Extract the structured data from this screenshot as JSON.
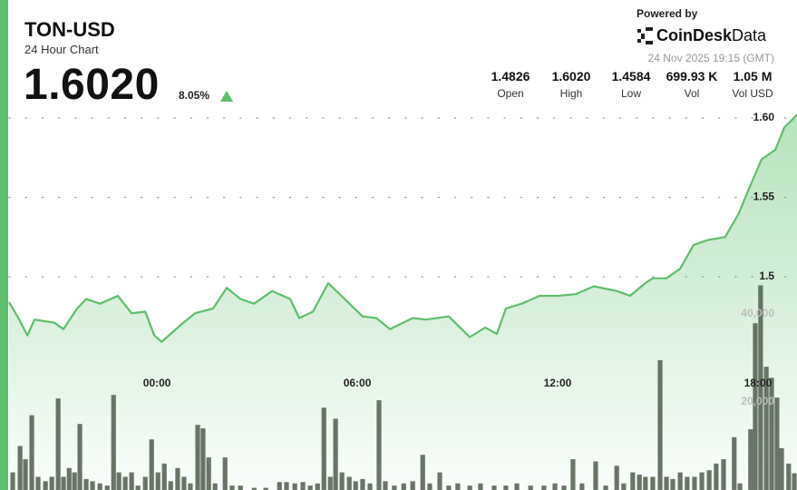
{
  "header": {
    "symbol": "TON-USD",
    "subtitle": "24 Hour Chart",
    "price": "1.6020",
    "change": "8.05%",
    "powered_by": "Powered by",
    "brand": "CoinDesk",
    "brand_suffix": "Data",
    "timestamp": "24 Nov 2025 19:15 (GMT)",
    "stats": [
      {
        "value": "1.4826",
        "label": "Open"
      },
      {
        "value": "1.6020",
        "label": "High"
      },
      {
        "value": "1.4584",
        "label": "Low"
      },
      {
        "value": "699.93 K",
        "label": "Vol"
      },
      {
        "value": "1.05 M",
        "label": "Vol USD"
      }
    ]
  },
  "chart_data": {
    "type": "line",
    "xlim": [
      -4.43,
      19.17
    ],
    "xticks": [
      {
        "value": 0,
        "label": "00:00"
      },
      {
        "value": 6,
        "label": "06:00"
      },
      {
        "value": 12,
        "label": "12:00"
      },
      {
        "value": 18,
        "label": "18:00"
      }
    ],
    "ylim": [
      1.3657,
      1.6057
    ],
    "yticks": [
      1.5,
      1.55,
      {
        "value": 1.6,
        "label": "1.60"
      }
    ],
    "y2lim": [
      0,
      86600
    ],
    "y2ticks": [
      {
        "value": 20000,
        "label": "20,000"
      },
      {
        "value": 40000,
        "label": "40,000"
      }
    ],
    "grid": true,
    "series": [
      {
        "color": "#5cbf6a",
        "x": [
          -4.43,
          -4.15,
          -3.88,
          -3.67,
          -3.07,
          -2.8,
          -2.39,
          -2.12,
          -1.71,
          -1.17,
          -0.76,
          -0.35,
          -0.08,
          0.14,
          0.73,
          1.14,
          1.68,
          2.09,
          2.5,
          2.91,
          3.45,
          3.99,
          4.26,
          4.67,
          5.13,
          5.62,
          6.16,
          6.57,
          6.98,
          7.66,
          8.06,
          8.74,
          9.37,
          9.83,
          10.18,
          10.45,
          10.92,
          11.46,
          12.0,
          12.54,
          13.08,
          13.77,
          14.17,
          14.63,
          14.85,
          15.26,
          15.67,
          16.07,
          16.48,
          17.02,
          17.43,
          17.7,
          18.11,
          18.52,
          18.79,
          19.17
        ],
        "values": [
          1.484,
          1.474,
          1.463,
          1.473,
          1.471,
          1.467,
          1.48,
          1.486,
          1.483,
          1.488,
          1.477,
          1.478,
          1.463,
          1.459,
          1.47,
          1.477,
          1.48,
          1.493,
          1.486,
          1.483,
          1.491,
          1.486,
          1.474,
          1.478,
          1.496,
          1.486,
          1.475,
          1.474,
          1.467,
          1.474,
          1.473,
          1.475,
          1.462,
          1.468,
          1.464,
          1.48,
          1.483,
          1.488,
          1.488,
          1.489,
          1.494,
          1.491,
          1.488,
          1.496,
          1.499,
          1.499,
          1.505,
          1.52,
          1.523,
          1.525,
          1.54,
          1.554,
          1.574,
          1.58,
          1.594,
          1.602
        ]
      },
      {
        "type": "bar",
        "axis": "y2",
        "color": "#4f5d4c",
        "x": [
          -4.32,
          -4.1,
          -3.94,
          -3.75,
          -3.56,
          -3.34,
          -3.15,
          -2.96,
          -2.8,
          -2.63,
          -2.47,
          -2.31,
          -2.12,
          -1.93,
          -1.71,
          -1.49,
          -1.3,
          -1.14,
          -0.95,
          -0.76,
          -0.57,
          -0.35,
          -0.16,
          0.03,
          0.22,
          0.41,
          0.62,
          0.81,
          1.0,
          1.22,
          1.38,
          1.55,
          1.74,
          2.04,
          2.25,
          2.5,
          2.91,
          3.26,
          3.67,
          3.88,
          4.13,
          4.37,
          4.59,
          4.81,
          5.0,
          5.19,
          5.35,
          5.54,
          5.76,
          5.95,
          6.16,
          6.38,
          6.65,
          6.84,
          7.11,
          7.39,
          7.66,
          7.96,
          8.17,
          8.47,
          8.74,
          9.01,
          9.37,
          9.69,
          10.1,
          10.45,
          10.78,
          11.19,
          11.59,
          11.92,
          12.19,
          12.46,
          12.73,
          13.14,
          13.44,
          13.77,
          13.98,
          14.25,
          14.45,
          14.63,
          14.85,
          15.07,
          15.26,
          15.45,
          15.67,
          15.88,
          16.1,
          16.32,
          16.54,
          16.75,
          16.97,
          17.29,
          17.46,
          17.78,
          17.92,
          18.08,
          18.25,
          18.41,
          18.57,
          18.71,
          18.92,
          19.09
        ],
        "values": [
          4000,
          10000,
          7000,
          17000,
          3000,
          2000,
          3000,
          20800,
          3000,
          5000,
          4000,
          15000,
          2500,
          2000,
          1500,
          1000,
          21600,
          4000,
          3000,
          4000,
          1000,
          3000,
          11500,
          4000,
          6000,
          2000,
          5000,
          3000,
          1500,
          14800,
          14000,
          7400,
          1500,
          7400,
          1000,
          1000,
          500,
          500,
          1800,
          1800,
          1500,
          1800,
          1000,
          1500,
          18700,
          3000,
          16200,
          4000,
          3000,
          2000,
          2500,
          1500,
          20400,
          2000,
          1000,
          1500,
          2000,
          8000,
          1500,
          4000,
          1000,
          1500,
          1000,
          1500,
          1000,
          1000,
          1500,
          1000,
          1000,
          1500,
          1000,
          7000,
          1500,
          6500,
          1000,
          5500,
          1500,
          4000,
          3500,
          3000,
          3000,
          29500,
          3000,
          2500,
          4000,
          3000,
          3000,
          4000,
          4500,
          6000,
          7000,
          12000,
          1500,
          13800,
          37900,
          46500,
          28000,
          25500,
          21000,
          9500,
          6000,
          3800
        ]
      }
    ]
  }
}
